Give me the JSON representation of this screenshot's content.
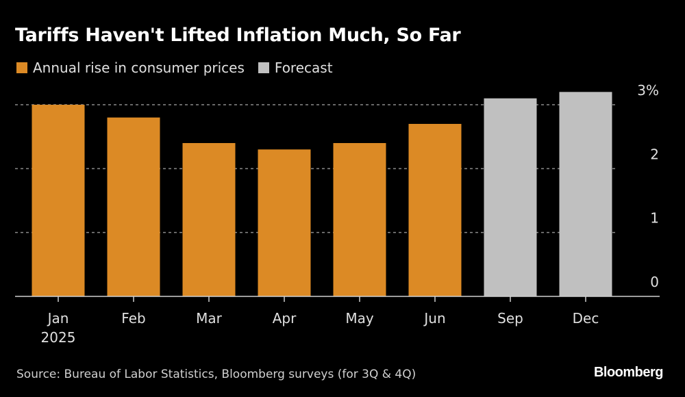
{
  "chart_data": {
    "type": "bar",
    "title": "Tariffs Haven't Lifted Inflation Much, So Far",
    "categories": [
      "Jan",
      "Feb",
      "Mar",
      "Apr",
      "May",
      "Jun",
      "Sep",
      "Dec"
    ],
    "category_sublabels": [
      "2025",
      "",
      "",
      "",
      "",
      "",
      "",
      ""
    ],
    "series": [
      {
        "name": "Annual rise in consumer prices",
        "color": "#dc8a25",
        "values": [
          3.0,
          2.8,
          2.4,
          2.3,
          2.4,
          2.7,
          null,
          null
        ]
      },
      {
        "name": "Forecast",
        "color": "#c0c0c0",
        "values": [
          null,
          null,
          null,
          null,
          null,
          null,
          3.1,
          3.2
        ]
      }
    ],
    "xlabel": "",
    "ylabel": "",
    "ylim": [
      0,
      3
    ],
    "yticks": [
      0,
      1,
      2,
      3
    ],
    "ytick_labels": [
      "0",
      "1",
      "2",
      "3%"
    ],
    "grid": true,
    "legend_position": "top-left",
    "y_axis_side": "right"
  },
  "source": "Source: Bureau of Labor Statistics, Bloomberg surveys (for 3Q & 4Q)",
  "brand": "Bloomberg"
}
